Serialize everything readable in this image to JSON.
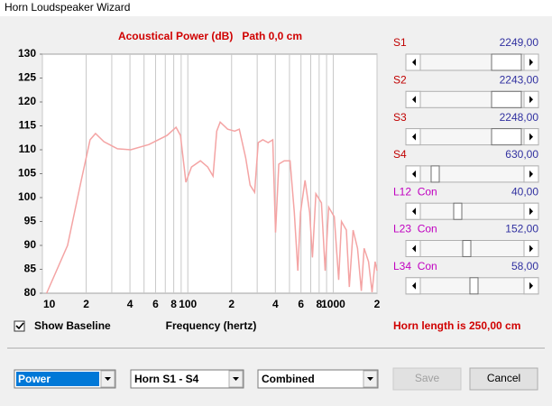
{
  "window": {
    "title": "Horn Loudspeaker Wizard"
  },
  "chart_data": {
    "type": "line",
    "title": "Acoustical Power (dB)   Path 0,0 cm",
    "xlabel": "Frequency (hertz)",
    "x": [
      10.7,
      14.9,
      18.5,
      21.3,
      23.2,
      26.5,
      32.8,
      40.5,
      54,
      72,
      83,
      89,
      97,
      106,
      122,
      137,
      149,
      158,
      167,
      188,
      210,
      226,
      250,
      268,
      288,
      305,
      328,
      357,
      384,
      401,
      422,
      460,
      505,
      540,
      571,
      596,
      640,
      688,
      719,
      760,
      830,
      880,
      930,
      1017,
      1090,
      1140,
      1230,
      1290,
      1370,
      1470,
      1560,
      1630,
      1750,
      1850,
      1940,
      2000
    ],
    "values": [
      80,
      90,
      103.6,
      112.1,
      113.4,
      111.7,
      110.2,
      110,
      111.1,
      113,
      114.7,
      113,
      103.2,
      106.4,
      107.7,
      106.4,
      104.5,
      113.9,
      115.8,
      114.3,
      113.9,
      114.3,
      108.3,
      102.6,
      101.1,
      111.5,
      112.1,
      111.5,
      112.1,
      92.7,
      107,
      107.7,
      107.7,
      96.9,
      84.7,
      96.9,
      103.6,
      96.9,
      87.5,
      100.8,
      98.9,
      84.7,
      98,
      96,
      82.8,
      95,
      93.2,
      81.3,
      93.2,
      89.4,
      80.5,
      89.4,
      86.6,
      80.2,
      86.6,
      84.7
    ],
    "color": "#f4a4a4",
    "xscale": "log",
    "xlim": [
      10,
      2000
    ],
    "ylim": [
      80,
      130
    ],
    "xticks": [
      10,
      {
        "value": 20,
        "label": "2"
      },
      {
        "value": 40,
        "label": "4"
      },
      {
        "value": 60,
        "label": "6"
      },
      {
        "value": 80,
        "label": "8"
      },
      100,
      {
        "value": 200,
        "label": "2"
      },
      {
        "value": 400,
        "label": "4"
      },
      {
        "value": 600,
        "label": "6"
      },
      {
        "value": 800,
        "label": "8"
      },
      1000,
      {
        "value": 2000,
        "label": "2"
      }
    ],
    "xminorticks": [
      30,
      50,
      70,
      90,
      300,
      500,
      700,
      900
    ],
    "yticks": [
      80,
      85,
      90,
      95,
      100,
      105,
      110,
      115,
      120,
      125,
      130
    ],
    "grid": "x"
  },
  "sliders": [
    {
      "label": "S1",
      "value": "2249,00",
      "color": "#c00000"
    },
    {
      "label": "S2",
      "value": "2243,00",
      "color": "#c00000"
    },
    {
      "label": "S3",
      "value": "2248,00",
      "color": "#c00000"
    },
    {
      "label": "S4",
      "value": "630,00",
      "color": "#c00000"
    },
    {
      "label": "L12  Con",
      "value": "40,00",
      "color": "#c000c0"
    },
    {
      "label": "L23  Con",
      "value": "152,00",
      "color": "#c000c0"
    },
    {
      "label": "L34  Con",
      "value": "58,00",
      "color": "#c000c0"
    }
  ],
  "checkbox": {
    "label": "Show Baseline",
    "checked": true
  },
  "status": "Horn length is 250,00 cm",
  "dropdowns": [
    "Power",
    "Horn S1 - S4",
    "Combined"
  ],
  "buttons": [
    {
      "label": "Save",
      "enabled": false
    },
    {
      "label": "Cancel",
      "enabled": true
    }
  ]
}
